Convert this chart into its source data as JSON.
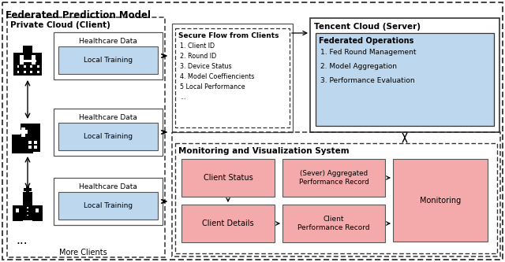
{
  "title": "Federated Prediction Model",
  "bg": "#ffffff",
  "private_cloud_label": "Private Cloud (Client)",
  "tencent_cloud_label": "Tencent Cloud (Server)",
  "monitoring_label": "Monitoring and Visualization System",
  "secure_flow_label": "Secure Flow from Clients",
  "secure_flow_items": [
    "1. Client ID",
    "2. Round ID",
    "3. Device Status",
    "4. Model Coeffiencients",
    "5 Local Performance",
    "..."
  ],
  "federated_ops_label": "Federated Operations",
  "federated_ops_items": [
    "1. Fed Round Management",
    "2. Model Aggregation",
    "3. Performance Evaluation"
  ],
  "healthcare_label": "Healthcare Data",
  "local_training_label": "Local Training",
  "more_clients_label": "More Clients",
  "monitoring_box_label": "Monitoring",
  "client_status_label": "Client Status",
  "client_details_label": "Client Details",
  "server_agg_label": "(Sever) Aggregated\nPerformance Record",
  "client_perf_label": "Client\nPerformance Record",
  "light_blue": "#BDD7EE",
  "light_pink": "#F4AAAA",
  "white": "#ffffff",
  "black": "#000000",
  "dark_gray": "#333333",
  "mid_gray": "#555555"
}
